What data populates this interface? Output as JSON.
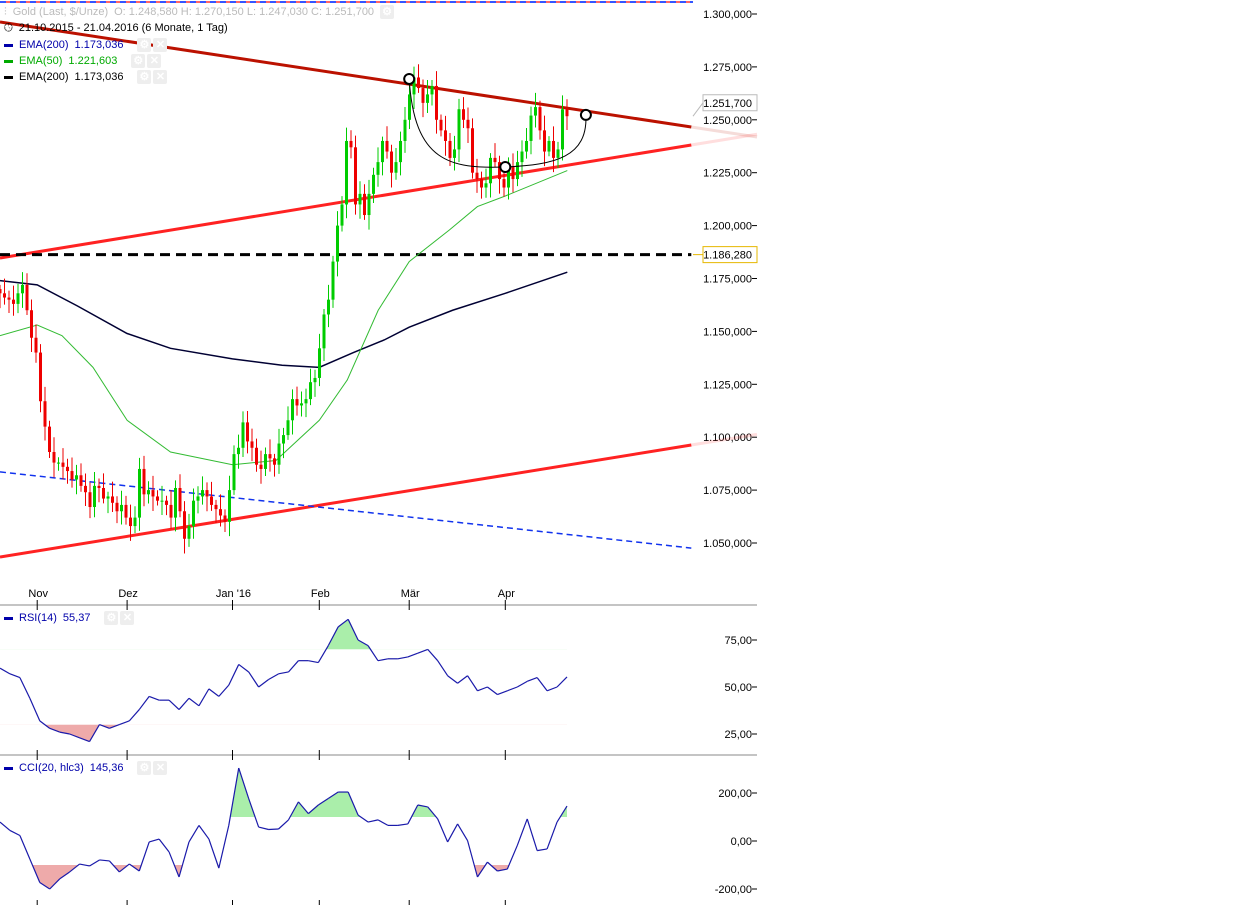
{
  "header": {
    "instrument": "Gold (Last, $/Unze)",
    "ohlc": "O: 1.248,580  H: 1.270,150  L: 1.247,030  C: 1.251,700",
    "period": "21.10.2015 - 21.04.2016 (6 Monate, 1 Tag)",
    "indicators": [
      {
        "label": "EMA(200)",
        "value": "1.173,036",
        "color": "#0000aa"
      },
      {
        "label": "EMA(50)",
        "value": "1.221,603",
        "color": "#00aa00"
      },
      {
        "label": "EMA(200)",
        "value": "1.173,036",
        "color": "#000000"
      }
    ],
    "settings_icon": "gear-icon",
    "close_icon": "close-icon"
  },
  "chart_data": [
    {
      "type": "candlestick",
      "start_date": "2015-10-21",
      "end_date": "2016-04-21",
      "ylim": [
        1040,
        1305
      ],
      "y_ticks": [
        1300,
        1275,
        1250,
        1225,
        1200,
        1175,
        1150,
        1125,
        1100,
        1075,
        1050
      ],
      "y_tick_labels": [
        "1.300,000",
        "1.275,000",
        "1.250,000",
        "1.225,000",
        "1.200,000",
        "1.175,000",
        "1.150,000",
        "1.125,000",
        "1.100,000",
        "1.075,000",
        "1.050,000"
      ],
      "x_ticks": [
        {
          "date": "2015-11-02",
          "label": "Nov"
        },
        {
          "date": "2015-12-01",
          "label": "Dez"
        },
        {
          "date": "2016-01-04",
          "label": "Jan '16"
        },
        {
          "date": "2016-02-01",
          "label": "Feb"
        },
        {
          "date": "2016-03-01",
          "label": "Mär"
        },
        {
          "date": "2016-04-01",
          "label": "Apr"
        }
      ],
      "first_open": 1170,
      "closes": [
        1168,
        1166,
        1165,
        1163,
        1168,
        1172,
        1160,
        1147,
        1140,
        1117,
        1105,
        1093,
        1088,
        1088,
        1086,
        1084,
        1080,
        1082,
        1077,
        1074,
        1067,
        1077,
        1076,
        1071,
        1072,
        1069,
        1065,
        1068,
        1062,
        1058,
        1062,
        1085,
        1073,
        1075,
        1072,
        1070,
        1070,
        1068,
        1062,
        1076,
        1065,
        1052,
        1058,
        1070,
        1072,
        1075,
        1072,
        1068,
        1066,
        1063,
        1060,
        1075,
        1092,
        1095,
        1107,
        1098,
        1095,
        1087,
        1085,
        1092,
        1090,
        1087,
        1097,
        1101,
        1108,
        1118,
        1115,
        1116,
        1118,
        1126,
        1128,
        1142,
        1158,
        1165,
        1183,
        1200,
        1210,
        1240,
        1237,
        1210,
        1215,
        1205,
        1215,
        1224,
        1230,
        1240,
        1235,
        1225,
        1230,
        1240,
        1250,
        1262,
        1270,
        1265,
        1258,
        1262,
        1266,
        1250,
        1245,
        1240,
        1232,
        1236,
        1255,
        1250,
        1246,
        1225,
        1222,
        1218,
        1220,
        1232,
        1230,
        1222,
        1218,
        1228,
        1222,
        1230,
        1235,
        1240,
        1252,
        1256,
        1245,
        1235,
        1240,
        1232,
        1236,
        1255,
        1251.7
      ],
      "up_color": "#00cc00",
      "down_color": "#ee0000",
      "series": [
        {
          "name": "EMA(200)",
          "color": "#000033",
          "points": [
            [
              "2015-10-21",
              1174
            ],
            [
              "2015-11-02",
              1172
            ],
            [
              "2015-11-15",
              1162
            ],
            [
              "2015-12-01",
              1149
            ],
            [
              "2015-12-15",
              1142
            ],
            [
              "2016-01-04",
              1137
            ],
            [
              "2016-01-20",
              1134
            ],
            [
              "2016-02-01",
              1133
            ],
            [
              "2016-02-12",
              1140
            ],
            [
              "2016-02-22",
              1146
            ],
            [
              "2016-03-01",
              1152
            ],
            [
              "2016-03-15",
              1160
            ],
            [
              "2016-04-01",
              1168
            ],
            [
              "2016-04-21",
              1178
            ]
          ]
        },
        {
          "name": "EMA(50)",
          "color": "#33bb33",
          "points": [
            [
              "2015-10-21",
              1148
            ],
            [
              "2015-11-02",
              1153
            ],
            [
              "2015-11-10",
              1148
            ],
            [
              "2015-11-20",
              1133
            ],
            [
              "2015-12-01",
              1108
            ],
            [
              "2015-12-15",
              1093
            ],
            [
              "2016-01-04",
              1087
            ],
            [
              "2016-01-18",
              1089
            ],
            [
              "2016-02-01",
              1108
            ],
            [
              "2016-02-10",
              1127
            ],
            [
              "2016-02-20",
              1160
            ],
            [
              "2016-03-01",
              1183
            ],
            [
              "2016-03-14",
              1198
            ],
            [
              "2016-03-23",
              1209
            ],
            [
              "2016-04-01",
              1214
            ],
            [
              "2016-04-21",
              1226
            ]
          ]
        }
      ],
      "trendlines": [
        {
          "color": "#bb1100",
          "style": "solid",
          "from": [
            "2015-10-21",
            1296.2
          ],
          "to": [
            "2016-05-31",
            1246.6
          ],
          "extend": true
        },
        {
          "color": "#ff2222",
          "style": "solid",
          "from": [
            "2015-10-21",
            1184.7
          ],
          "to": [
            "2016-05-31",
            1238.1
          ],
          "extend": true
        },
        {
          "color": "#ff2222",
          "style": "solid",
          "from": [
            "2015-10-21",
            1043.4
          ],
          "to": [
            "2016-05-31",
            1096.3
          ],
          "extend": true
        },
        {
          "color": "#1133ee",
          "style": "dashed",
          "from": [
            "2015-10-21",
            1083.6
          ],
          "to": [
            "2016-05-31",
            1047.6
          ],
          "extend": false
        },
        {
          "color": "#000000",
          "style": "dashed",
          "from": [
            "2015-10-21",
            1186.28
          ],
          "to": [
            "2016-05-31",
            1186.28
          ],
          "extend": false
        }
      ],
      "cup_points": [
        [
          "2016-03-01",
          1269.3
        ],
        [
          "2016-04-01",
          1227.7
        ],
        [
          "2016-04-27",
          1252.3
        ]
      ],
      "price_tags": [
        {
          "price": 1251.7,
          "label": "1.251,700",
          "color": "#bbbbbb"
        },
        {
          "price": 1186.28,
          "label": "1.186,280",
          "color": "#e6b800"
        }
      ]
    },
    {
      "type": "line",
      "name": "RSI(14)",
      "legend_value": "55,37",
      "color": "#1a1aaa",
      "ylim": [
        15,
        95
      ],
      "y_ticks": [
        75,
        50,
        25
      ],
      "y_tick_labels": [
        "75,00",
        "50,00",
        "25,00"
      ],
      "zones": {
        "upper": 70,
        "lower": 30,
        "upper_color": "#aaeeaa",
        "lower_color": "#eeaaaa"
      },
      "values": [
        60,
        57,
        55,
        44,
        32,
        28,
        26,
        25,
        23,
        21,
        30,
        28,
        30,
        32,
        38,
        45,
        43,
        43,
        38,
        44,
        40,
        49,
        45,
        51,
        62,
        58,
        50,
        54,
        57,
        58,
        64,
        64,
        63,
        72,
        82,
        86,
        75,
        72,
        64,
        65,
        65,
        66,
        68,
        70,
        64,
        56,
        52,
        56,
        48,
        50,
        46,
        48,
        50,
        53,
        55,
        48,
        50,
        55.37
      ]
    },
    {
      "type": "line",
      "name": "CCI(20, hlc3)",
      "legend_value": "145,36",
      "color": "#1a1aaa",
      "ylim": [
        -230,
        330
      ],
      "y_ticks": [
        200,
        0,
        -200
      ],
      "y_tick_labels": [
        "200,00",
        "0,00",
        "-200,00"
      ],
      "zones": {
        "upper": 100,
        "lower": -100,
        "upper_color": "#aaeeaa",
        "lower_color": "#eeaaaa"
      },
      "values": [
        79,
        44,
        23,
        -75,
        -173,
        -200,
        -158,
        -129,
        -96,
        -104,
        -79,
        -83,
        -129,
        -96,
        -125,
        -4,
        8,
        -46,
        -150,
        -4,
        65,
        8,
        -113,
        65,
        304,
        177,
        58,
        48,
        50,
        88,
        163,
        114,
        150,
        177,
        204,
        204,
        108,
        79,
        88,
        65,
        65,
        71,
        150,
        142,
        92,
        -4,
        71,
        2,
        -150,
        -88,
        -125,
        -117,
        -19,
        92,
        -40,
        -33,
        79,
        145.36
      ]
    }
  ]
}
